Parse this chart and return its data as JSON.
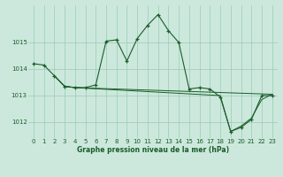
{
  "title": "Graphe pression niveau de la mer (hPa)",
  "background_color": "#cce8dc",
  "grid_color": "#99ccb3",
  "line_color": "#1a5c2a",
  "series_main": {
    "x": [
      0,
      1,
      2,
      3,
      4,
      5,
      6,
      7,
      8,
      9,
      10,
      11,
      12,
      13,
      14,
      15,
      16,
      17,
      18,
      19,
      20,
      21,
      22,
      23
    ],
    "y": [
      1014.2,
      1014.15,
      1013.75,
      1013.35,
      1013.3,
      1013.3,
      1013.4,
      1015.05,
      1015.1,
      1014.3,
      1015.15,
      1015.65,
      1016.05,
      1015.45,
      1015.0,
      1013.25,
      1013.3,
      1013.25,
      1012.95,
      1011.65,
      1011.8,
      1012.1,
      1013.0,
      1013.0
    ]
  },
  "series_flat1": {
    "x": [
      2,
      3,
      4,
      23
    ],
    "y": [
      1013.75,
      1013.35,
      1013.3,
      1013.05
    ]
  },
  "series_flat2": {
    "x": [
      2,
      3,
      4,
      18,
      19,
      20,
      21,
      22,
      23
    ],
    "y": [
      1013.75,
      1013.35,
      1013.3,
      1013.0,
      1011.65,
      1011.85,
      1012.15,
      1012.85,
      1013.05
    ]
  },
  "ylim": [
    1011.4,
    1016.4
  ],
  "xlim": [
    -0.5,
    23.5
  ],
  "yticks": [
    1012,
    1013,
    1014,
    1015
  ],
  "xticks": [
    0,
    1,
    2,
    3,
    4,
    5,
    6,
    7,
    8,
    9,
    10,
    11,
    12,
    13,
    14,
    15,
    16,
    17,
    18,
    19,
    20,
    21,
    22,
    23
  ],
  "xlabel_fontsize": 5.5,
  "tick_fontsize": 5.0
}
